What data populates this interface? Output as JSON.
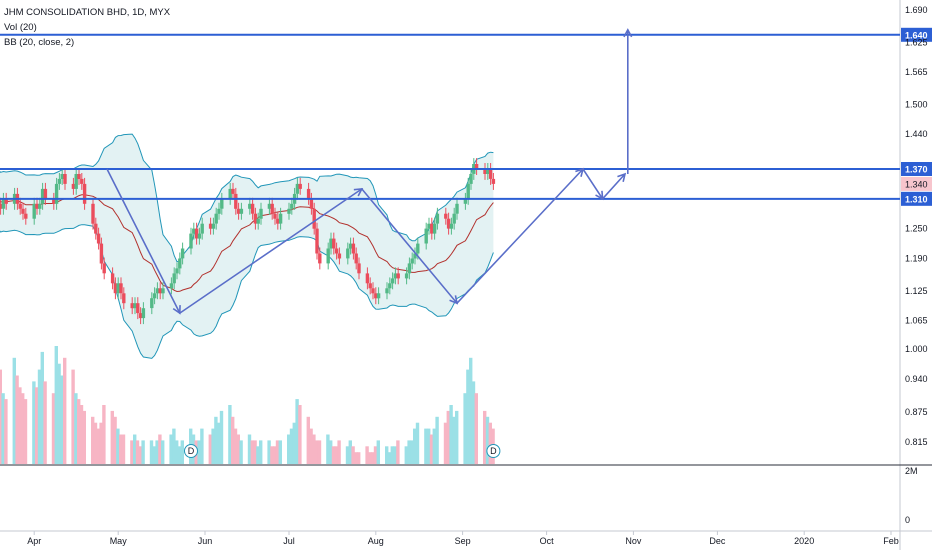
{
  "legend": {
    "symbol": "JHM CONSOLIDATION BHD, 1D, MYX",
    "volume": "Vol (20)",
    "bb": "BB (20, close, 2)"
  },
  "colors": {
    "up": "#53b987",
    "down": "#eb4d5c",
    "vol_up": "#9be0e6",
    "vol_down": "#f7b5c4",
    "bb_band": "#2196b8",
    "bb_basis": "#b2312d",
    "bb_fill": "#e3f2f3",
    "hline": "#2c5fd4",
    "arrow": "#5a6ec9",
    "last_price": "#f7c5cd"
  },
  "chart_data": {
    "type": "candlestick",
    "ylim": [
      1.03,
      1.71
    ],
    "price_ticks": [
      "1.690",
      "1.625",
      "1.565",
      "1.500",
      "1.440",
      "1.250",
      "1.190",
      "1.125",
      "1.065",
      "1.000",
      "0.940",
      "0.875",
      "0.815"
    ],
    "volume_ticks": [
      "2M",
      "0"
    ],
    "x_labels": [
      "Apr",
      "May",
      "Jun",
      "Jul",
      "Aug",
      "Sep",
      "Oct",
      "Nov",
      "Dec",
      "2020",
      "Feb"
    ],
    "x_label_dates": [
      "2019-04-01",
      "2019-05-01",
      "2019-06-01",
      "2019-07-01",
      "2019-08-01",
      "2019-09-01",
      "2019-10-01",
      "2019-11-01",
      "2019-12-01",
      "2020-01-01",
      "2020-02-01"
    ],
    "horizontal_levels": [
      {
        "value": 1.64,
        "label": "1.640"
      },
      {
        "value": 1.37,
        "label": "1.370"
      },
      {
        "value": 1.31,
        "label": "1.310"
      }
    ],
    "last_price": {
      "value": 1.34,
      "label": "1.340"
    },
    "dividend_markers": [
      {
        "date": "2019-05-27",
        "label": "D"
      },
      {
        "date": "2019-09-12",
        "label": "D"
      }
    ],
    "path_points": [
      {
        "date": "2019-04-27",
        "price": 1.37
      },
      {
        "date": "2019-05-23",
        "price": 1.08
      },
      {
        "date": "2019-07-27",
        "price": 1.33
      },
      {
        "date": "2019-08-30",
        "price": 1.1
      },
      {
        "date": "2019-10-14",
        "price": 1.37
      },
      {
        "date": "2019-10-21",
        "price": 1.31
      },
      {
        "date": "2019-10-29",
        "price": 1.36
      }
    ],
    "target_arrow": {
      "date": "2019-10-30",
      "from": 1.36,
      "to": 1.65
    },
    "series": {
      "close": [
        1.32,
        1.3,
        1.29,
        1.31,
        1.3,
        1.32,
        1.3,
        1.29,
        1.28,
        1.27,
        1.3,
        1.29,
        1.3,
        1.33,
        1.31,
        1.3,
        1.34,
        1.35,
        1.36,
        1.34,
        1.33,
        1.36,
        1.35,
        1.34,
        1.3,
        1.26,
        1.24,
        1.22,
        1.18,
        1.16,
        1.14,
        1.12,
        1.14,
        1.12,
        1.1,
        1.09,
        1.1,
        1.08,
        1.07,
        1.09,
        1.11,
        1.12,
        1.13,
        1.12,
        1.13,
        1.14,
        1.16,
        1.17,
        1.19,
        1.21,
        1.24,
        1.25,
        1.23,
        1.24,
        1.26,
        1.25,
        1.26,
        1.28,
        1.29,
        1.31,
        1.33,
        1.32,
        1.29,
        1.28,
        1.29,
        1.3,
        1.28,
        1.26,
        1.27,
        1.29,
        1.3,
        1.28,
        1.27,
        1.26,
        1.28,
        1.29,
        1.3,
        1.32,
        1.34,
        1.33,
        1.31,
        1.29,
        1.25,
        1.2,
        1.18,
        1.21,
        1.23,
        1.21,
        1.2,
        1.19,
        1.21,
        1.22,
        1.2,
        1.18,
        1.16,
        1.14,
        1.13,
        1.12,
        1.11,
        1.12,
        1.13,
        1.14,
        1.15,
        1.16,
        1.15,
        1.16,
        1.18,
        1.19,
        1.2,
        1.22,
        1.25,
        1.26,
        1.24,
        1.26,
        1.28,
        1.27,
        1.25,
        1.26,
        1.28,
        1.3,
        1.31,
        1.34,
        1.36,
        1.38,
        1.37,
        1.36,
        1.37,
        1.35,
        1.34
      ],
      "volume": [
        0.85,
        0.7,
        0.8,
        0.6,
        0.55,
        0.9,
        0.75,
        0.65,
        0.6,
        0.55,
        0.7,
        0.65,
        0.8,
        0.95,
        0.7,
        0.6,
        1.0,
        0.85,
        0.75,
        0.9,
        0.8,
        0.6,
        0.55,
        0.5,
        0.45,
        0.4,
        0.35,
        0.3,
        0.35,
        0.5,
        0.45,
        0.4,
        0.3,
        0.25,
        0.25,
        0.2,
        0.25,
        0.2,
        0.15,
        0.2,
        0.2,
        0.15,
        0.2,
        0.25,
        0.2,
        0.25,
        0.3,
        0.2,
        0.15,
        0.2,
        0.3,
        0.25,
        0.2,
        0.2,
        0.3,
        0.25,
        0.3,
        0.4,
        0.35,
        0.45,
        0.5,
        0.4,
        0.3,
        0.25,
        0.2,
        0.25,
        0.2,
        0.2,
        0.15,
        0.2,
        0.2,
        0.15,
        0.15,
        0.2,
        0.2,
        0.25,
        0.3,
        0.35,
        0.55,
        0.5,
        0.4,
        0.3,
        0.25,
        0.2,
        0.2,
        0.25,
        0.2,
        0.15,
        0.15,
        0.2,
        0.15,
        0.2,
        0.15,
        0.1,
        0.1,
        0.15,
        0.1,
        0.1,
        0.15,
        0.2,
        0.15,
        0.1,
        0.15,
        0.15,
        0.2,
        0.15,
        0.2,
        0.2,
        0.3,
        0.35,
        0.3,
        0.3,
        0.25,
        0.3,
        0.4,
        0.35,
        0.45,
        0.5,
        0.4,
        0.45,
        0.6,
        0.8,
        0.9,
        0.7,
        0.6,
        0.45,
        0.4,
        0.35,
        0.3
      ]
    }
  }
}
